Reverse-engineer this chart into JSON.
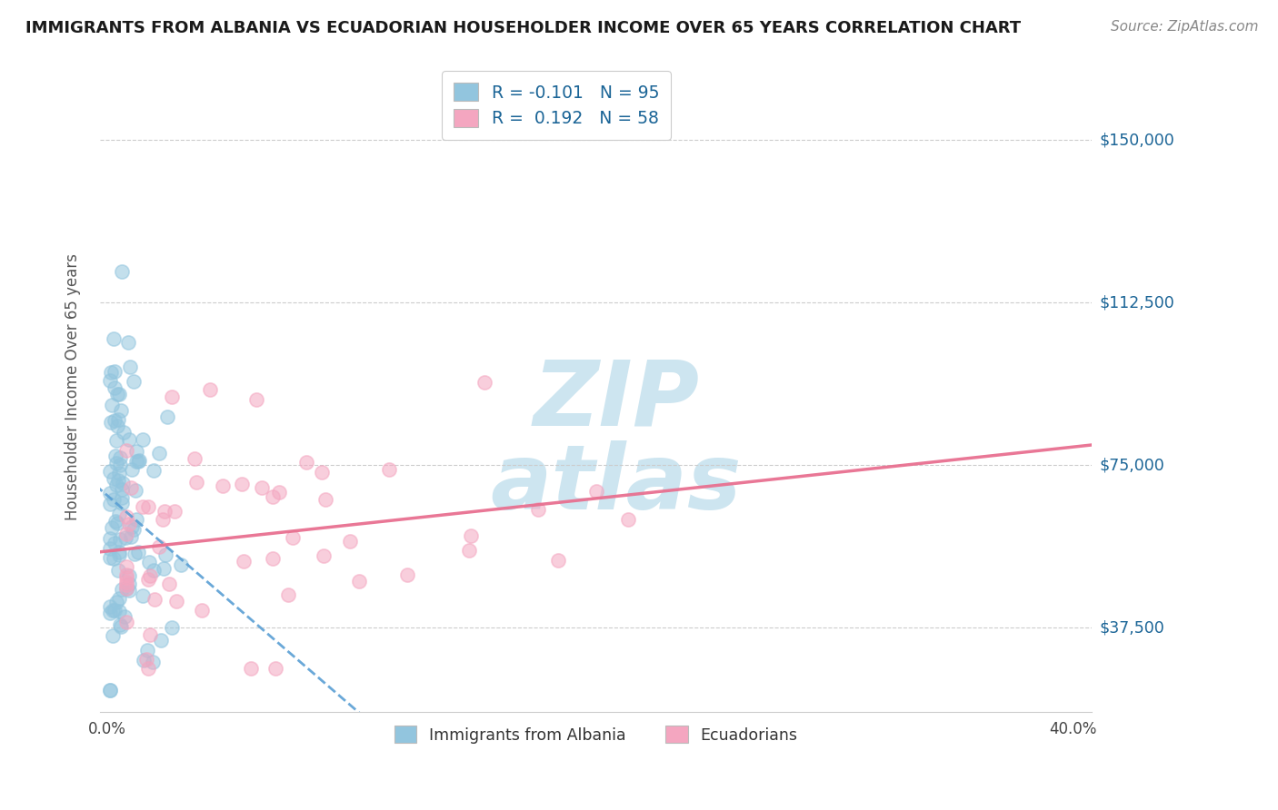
{
  "title": "IMMIGRANTS FROM ALBANIA VS ECUADORIAN HOUSEHOLDER INCOME OVER 65 YEARS CORRELATION CHART",
  "source": "Source: ZipAtlas.com",
  "ylabel": "Householder Income Over 65 years",
  "ytick_vals": [
    37500,
    75000,
    112500,
    150000
  ],
  "ytick_labels": [
    "$37,500",
    "$75,000",
    "$112,500",
    "$150,000"
  ],
  "xlim": [
    -0.003,
    0.408
  ],
  "ylim": [
    18000,
    168000
  ],
  "color_blue": "#92C5DE",
  "color_pink": "#F4A6C0",
  "line_color_blue": "#5a9fd4",
  "line_color_pink": "#e87090",
  "watermark_color": "#cde5f0",
  "title_fontsize": 13,
  "source_fontsize": 11,
  "scatter_size": 120,
  "scatter_alpha": 0.55,
  "scatter_lw": 1.2
}
